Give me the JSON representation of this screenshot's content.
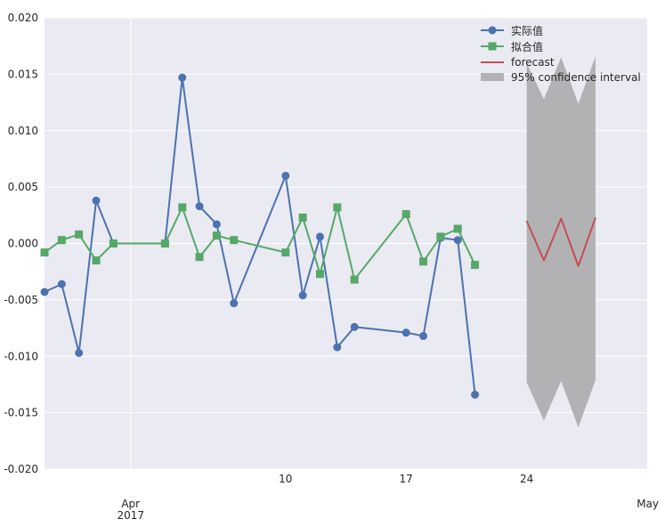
{
  "chart_data": {
    "type": "line",
    "title": "",
    "xlabel": "",
    "ylabel": "",
    "x_dates": [
      "2017-03-27",
      "2017-03-28",
      "2017-03-29",
      "2017-03-30",
      "2017-03-31",
      "2017-04-01",
      "2017-04-02",
      "2017-04-03",
      "2017-04-04",
      "2017-04-05",
      "2017-04-06",
      "2017-04-07",
      "2017-04-08",
      "2017-04-09",
      "2017-04-10",
      "2017-04-11",
      "2017-04-12",
      "2017-04-13",
      "2017-04-14",
      "2017-04-15",
      "2017-04-16",
      "2017-04-17",
      "2017-04-18",
      "2017-04-19",
      "2017-04-20",
      "2017-04-21",
      "2017-04-22",
      "2017-04-23",
      "2017-04-24",
      "2017-04-25",
      "2017-04-26",
      "2017-04-27",
      "2017-04-28",
      "2017-04-29",
      "2017-04-30",
      "2017-05-01"
    ],
    "xlim": [
      "2017-03-27",
      "2017-05-01"
    ],
    "ylim": [
      -0.02,
      0.02
    ],
    "y_ticks": [
      -0.02,
      -0.015,
      -0.01,
      -0.005,
      0.0,
      0.005,
      0.01,
      0.015,
      0.02
    ],
    "y_tick_labels": [
      "-0.020",
      "-0.015",
      "-0.010",
      "-0.005",
      "0.000",
      "0.005",
      "0.010",
      "0.015",
      "0.020"
    ],
    "x_ticks": [
      {
        "date": "2017-04-01",
        "label": "Apr",
        "sublabel": "2017"
      },
      {
        "date": "2017-04-10",
        "label": "10",
        "sublabel": ""
      },
      {
        "date": "2017-04-17",
        "label": "17",
        "sublabel": ""
      },
      {
        "date": "2017-04-24",
        "label": "24",
        "sublabel": ""
      },
      {
        "date": "2017-05-01",
        "label": "May",
        "sublabel": ""
      }
    ],
    "major_grid_date": "2017-04-01",
    "grid": true,
    "legend_position": "top-right",
    "series": [
      {
        "name": "实际值",
        "color": "#4c72b0",
        "marker": "circle",
        "points": [
          [
            "2017-03-27",
            -0.0043
          ],
          [
            "2017-03-28",
            -0.0036
          ],
          [
            "2017-03-29",
            -0.0097
          ],
          [
            "2017-03-30",
            0.0038
          ],
          [
            "2017-03-31",
            0.0
          ],
          [
            "2017-04-03",
            0.0
          ],
          [
            "2017-04-04",
            0.0147
          ],
          [
            "2017-04-05",
            0.0033
          ],
          [
            "2017-04-06",
            0.0017
          ],
          [
            "2017-04-07",
            -0.0053
          ],
          [
            "2017-04-10",
            0.006
          ],
          [
            "2017-04-11",
            -0.0046
          ],
          [
            "2017-04-12",
            0.0006
          ],
          [
            "2017-04-13",
            -0.0092
          ],
          [
            "2017-04-14",
            -0.0074
          ],
          [
            "2017-04-17",
            -0.0079
          ],
          [
            "2017-04-18",
            -0.0082
          ],
          [
            "2017-04-19",
            0.0005
          ],
          [
            "2017-04-20",
            0.0003
          ],
          [
            "2017-04-21",
            -0.0134
          ]
        ]
      },
      {
        "name": "拟合值",
        "color": "#55a868",
        "marker": "square",
        "points": [
          [
            "2017-03-27",
            -0.0008
          ],
          [
            "2017-03-28",
            0.0003
          ],
          [
            "2017-03-29",
            0.0008
          ],
          [
            "2017-03-30",
            -0.0015
          ],
          [
            "2017-03-31",
            0.0
          ],
          [
            "2017-04-03",
            0.0
          ],
          [
            "2017-04-04",
            0.0032
          ],
          [
            "2017-04-05",
            -0.0012
          ],
          [
            "2017-04-06",
            0.0007
          ],
          [
            "2017-04-07",
            0.0003
          ],
          [
            "2017-04-10",
            -0.0008
          ],
          [
            "2017-04-11",
            0.0023
          ],
          [
            "2017-04-12",
            -0.0027
          ],
          [
            "2017-04-13",
            0.0032
          ],
          [
            "2017-04-14",
            -0.0032
          ],
          [
            "2017-04-17",
            0.0026
          ],
          [
            "2017-04-18",
            -0.0016
          ],
          [
            "2017-04-19",
            0.0006
          ],
          [
            "2017-04-20",
            0.0013
          ],
          [
            "2017-04-21",
            -0.0019
          ]
        ]
      },
      {
        "name": "forecast",
        "color": "#c44e52",
        "marker": "none",
        "points": [
          [
            "2017-04-24",
            0.002
          ],
          [
            "2017-04-25",
            -0.0015
          ],
          [
            "2017-04-26",
            0.0022
          ],
          [
            "2017-04-27",
            -0.002
          ],
          [
            "2017-04-28",
            0.0023
          ]
        ]
      }
    ],
    "confidence_interval": {
      "name": "95% confidence interval",
      "color": "#b2b2b5",
      "upper": [
        [
          "2017-04-24",
          0.016
        ],
        [
          "2017-04-25",
          0.0128
        ],
        [
          "2017-04-26",
          0.0165
        ],
        [
          "2017-04-27",
          0.0124
        ],
        [
          "2017-04-28",
          0.0166
        ]
      ],
      "lower": [
        [
          "2017-04-24",
          -0.0123
        ],
        [
          "2017-04-25",
          -0.0157
        ],
        [
          "2017-04-26",
          -0.0122
        ],
        [
          "2017-04-27",
          -0.0163
        ],
        [
          "2017-04-28",
          -0.0121
        ]
      ]
    }
  }
}
